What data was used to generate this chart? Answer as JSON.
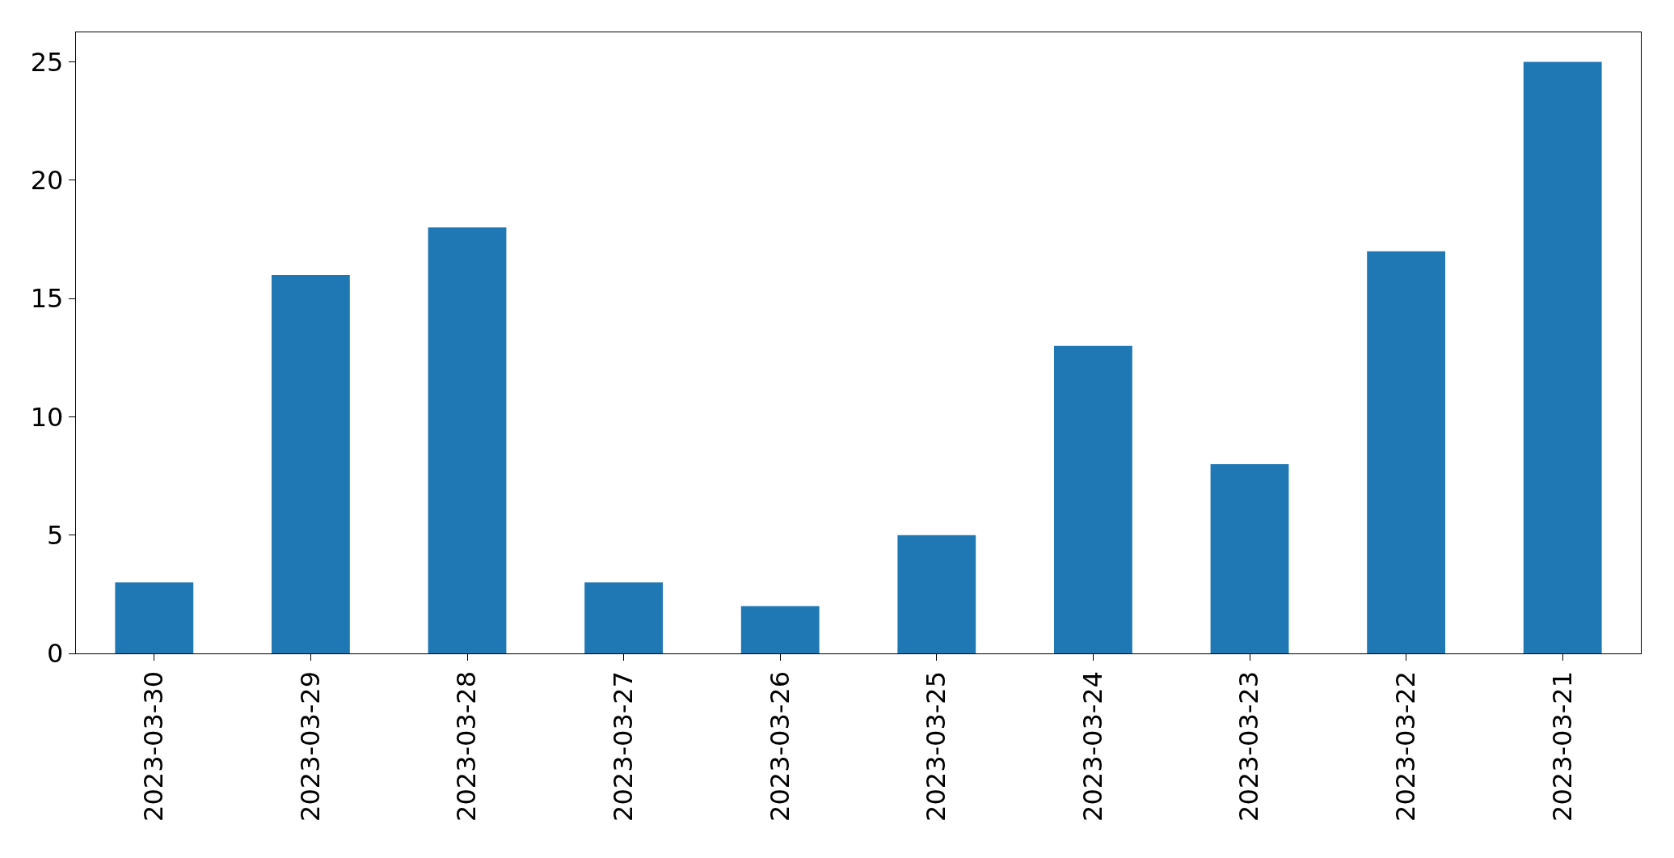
{
  "chart_data": {
    "type": "bar",
    "categories": [
      "2023-03-30",
      "2023-03-29",
      "2023-03-28",
      "2023-03-27",
      "2023-03-26",
      "2023-03-25",
      "2023-03-24",
      "2023-03-23",
      "2023-03-22",
      "2023-03-21"
    ],
    "values": [
      3,
      16,
      18,
      3,
      2,
      5,
      13,
      8,
      17,
      25
    ],
    "color": "#1f77b4",
    "ylim": [
      0,
      26.25
    ],
    "yticks": [
      0,
      5,
      10,
      15,
      20,
      25
    ]
  }
}
